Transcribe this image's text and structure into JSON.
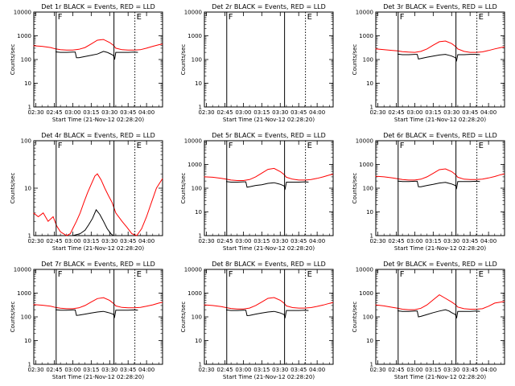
{
  "colors": {
    "events": "#000000",
    "lld": "#ff0000",
    "background": "#ffffff"
  },
  "shared": {
    "xlabel": "Start Time (21-Nov-12 02:28:20)",
    "ylabel": "Counts/sec",
    "x_tick_labels": [
      "02:30",
      "02:45",
      "03:00",
      "03:15",
      "03:30",
      "03:45",
      "04:00"
    ],
    "x_tick_minutes": [
      30,
      45,
      60,
      75,
      90,
      105,
      120
    ],
    "xlim_minutes": [
      28.33,
      133
    ],
    "ylog": true,
    "markers": [
      {
        "label": "F",
        "time_min": 46.5,
        "style": "solid"
      },
      {
        "label": "E",
        "time_min": 110.5,
        "style": "dotted"
      }
    ],
    "extra_solid_lines_min": [
      93.5
    ]
  },
  "chart_data": [
    {
      "type": "line",
      "title": "Det 1r BLACK = Events, RED = LLD",
      "ylim": [
        1,
        10000
      ],
      "y_tick_labels": [
        "1",
        "10",
        "100",
        "1000",
        "10000"
      ],
      "y_tick_values": [
        1,
        10,
        100,
        1000,
        10000
      ],
      "series": [
        {
          "kind": "lld",
          "x": [
            28,
            35,
            42,
            46,
            50,
            55,
            60,
            65,
            70,
            75,
            80,
            85,
            90,
            93,
            95,
            100,
            105,
            110,
            115,
            120,
            125,
            130,
            133
          ],
          "y": [
            380,
            360,
            320,
            280,
            260,
            250,
            250,
            270,
            320,
            450,
            650,
            700,
            520,
            400,
            300,
            260,
            250,
            250,
            260,
            300,
            360,
            420,
            450
          ]
        },
        {
          "kind": "events",
          "x": [
            46,
            50,
            55,
            60,
            62,
            63,
            65,
            70,
            75,
            80,
            85,
            88,
            90,
            93,
            94,
            95,
            100,
            105,
            110,
            113
          ],
          "y": [
            210,
            200,
            200,
            205,
            205,
            120,
            120,
            135,
            150,
            170,
            220,
            200,
            180,
            150,
            100,
            200,
            200,
            200,
            205,
            200
          ]
        }
      ]
    },
    {
      "type": "line",
      "title": "Det 2r BLACK = Events, RED = LLD",
      "ylim": [
        1,
        10000
      ],
      "y_tick_labels": [
        "1",
        "10",
        "100",
        "1000",
        "10000"
      ],
      "y_tick_values": [
        1,
        10,
        100,
        1000,
        10000
      ],
      "series": []
    },
    {
      "type": "line",
      "title": "Det 3r BLACK = Events, RED = LLD",
      "ylim": [
        1,
        10000
      ],
      "y_tick_labels": [
        "1",
        "10",
        "100",
        "1000",
        "10000"
      ],
      "y_tick_values": [
        1,
        10,
        100,
        1000,
        10000
      ],
      "series": [
        {
          "kind": "lld",
          "x": [
            28,
            35,
            42,
            46,
            50,
            55,
            60,
            65,
            70,
            75,
            80,
            85,
            90,
            93,
            95,
            100,
            105,
            110,
            115,
            120,
            125,
            130,
            133
          ],
          "y": [
            280,
            260,
            240,
            230,
            215,
            205,
            200,
            220,
            280,
            400,
            560,
            600,
            470,
            360,
            280,
            220,
            200,
            200,
            210,
            240,
            280,
            320,
            340
          ]
        },
        {
          "kind": "events",
          "x": [
            46,
            50,
            55,
            60,
            62,
            63,
            65,
            70,
            75,
            80,
            85,
            88,
            90,
            93,
            94,
            95,
            100,
            105,
            110,
            113
          ],
          "y": [
            170,
            160,
            160,
            165,
            165,
            105,
            110,
            125,
            140,
            155,
            165,
            150,
            140,
            120,
            90,
            160,
            160,
            165,
            165,
            160
          ]
        }
      ]
    },
    {
      "type": "line",
      "title": "Det 4r BLACK = Events, RED = LLD",
      "ylim": [
        1,
        100
      ],
      "y_tick_labels": [
        "1",
        "10",
        "100"
      ],
      "y_tick_values": [
        1,
        10,
        100
      ],
      "series": [
        {
          "kind": "lld",
          "x": [
            28,
            32,
            36,
            40,
            44,
            47,
            50,
            55,
            58,
            60,
            63,
            66,
            69,
            72,
            75,
            78,
            80,
            83,
            86,
            89,
            92,
            95,
            100,
            104,
            108,
            112,
            116,
            120,
            124,
            128,
            133
          ],
          "y": [
            3,
            2.5,
            3,
            2,
            2.5,
            1.6,
            1.2,
            1.0,
            1.1,
            1.4,
            2,
            3,
            5,
            8,
            12,
            18,
            20,
            15,
            10,
            7,
            5,
            3,
            2,
            1.5,
            1.1,
            1.0,
            1.4,
            2.5,
            5,
            10,
            16
          ]
        },
        {
          "kind": "events",
          "x": [
            60,
            66,
            70,
            73,
            76,
            79,
            82,
            85,
            88,
            91,
            93
          ],
          "y": [
            1.0,
            1.1,
            1.3,
            1.7,
            2.3,
            3.5,
            2.8,
            2.0,
            1.4,
            1.1,
            1.0
          ]
        }
      ]
    },
    {
      "type": "line",
      "title": "Det 5r BLACK = Events, RED = LLD",
      "ylim": [
        1,
        10000
      ],
      "y_tick_labels": [
        "1",
        "10",
        "100",
        "1000",
        "10000"
      ],
      "y_tick_values": [
        1,
        10,
        100,
        1000,
        10000
      ],
      "series": [
        {
          "kind": "lld",
          "x": [
            28,
            35,
            42,
            46,
            50,
            55,
            60,
            65,
            70,
            75,
            80,
            85,
            90,
            93,
            95,
            100,
            105,
            110,
            115,
            120,
            125,
            130,
            133
          ],
          "y": [
            300,
            290,
            260,
            240,
            220,
            210,
            210,
            230,
            300,
            430,
            620,
            680,
            500,
            380,
            290,
            240,
            220,
            220,
            230,
            260,
            300,
            360,
            390
          ]
        },
        {
          "kind": "events",
          "x": [
            46,
            50,
            55,
            60,
            62,
            63,
            65,
            70,
            75,
            80,
            85,
            88,
            90,
            93,
            94,
            95,
            100,
            105,
            110,
            113
          ],
          "y": [
            190,
            180,
            180,
            185,
            185,
            110,
            115,
            130,
            140,
            160,
            170,
            155,
            145,
            125,
            95,
            180,
            180,
            180,
            185,
            180
          ]
        }
      ]
    },
    {
      "type": "line",
      "title": "Det 6r BLACK = Events, RED = LLD",
      "ylim": [
        1,
        10000
      ],
      "y_tick_labels": [
        "1",
        "10",
        "100",
        "1000",
        "10000"
      ],
      "y_tick_values": [
        1,
        10,
        100,
        1000,
        10000
      ],
      "series": [
        {
          "kind": "lld",
          "x": [
            28,
            35,
            42,
            46,
            50,
            55,
            60,
            65,
            70,
            75,
            80,
            85,
            90,
            93,
            95,
            100,
            105,
            110,
            115,
            120,
            125,
            130,
            133
          ],
          "y": [
            320,
            300,
            270,
            250,
            230,
            220,
            220,
            240,
            300,
            420,
            600,
            650,
            500,
            380,
            290,
            240,
            230,
            230,
            240,
            270,
            310,
            370,
            400
          ]
        },
        {
          "kind": "events",
          "x": [
            46,
            50,
            55,
            60,
            62,
            63,
            65,
            70,
            75,
            80,
            85,
            88,
            90,
            93,
            94,
            95,
            100,
            105,
            110,
            113
          ],
          "y": [
            200,
            190,
            190,
            195,
            195,
            115,
            115,
            130,
            145,
            165,
            175,
            160,
            150,
            130,
            100,
            190,
            190,
            190,
            195,
            190
          ]
        }
      ]
    },
    {
      "type": "line",
      "title": "Det 7r BLACK = Events, RED = LLD",
      "ylim": [
        1,
        10000
      ],
      "y_tick_labels": [
        "1",
        "10",
        "100",
        "1000",
        "10000"
      ],
      "y_tick_values": [
        1,
        10,
        100,
        1000,
        10000
      ],
      "series": [
        {
          "kind": "lld",
          "x": [
            28,
            35,
            42,
            46,
            50,
            55,
            60,
            65,
            70,
            75,
            80,
            85,
            90,
            93,
            95,
            100,
            105,
            110,
            115,
            120,
            125,
            130,
            133
          ],
          "y": [
            330,
            310,
            280,
            250,
            230,
            220,
            220,
            240,
            300,
            420,
            590,
            640,
            490,
            370,
            290,
            250,
            240,
            240,
            250,
            280,
            320,
            380,
            410
          ]
        },
        {
          "kind": "events",
          "x": [
            46,
            50,
            55,
            60,
            62,
            63,
            65,
            70,
            75,
            80,
            85,
            88,
            90,
            93,
            94,
            95,
            100,
            105,
            110,
            113
          ],
          "y": [
            200,
            190,
            190,
            195,
            195,
            115,
            118,
            130,
            145,
            160,
            170,
            155,
            145,
            128,
            98,
            190,
            190,
            190,
            195,
            190
          ]
        }
      ]
    },
    {
      "type": "line",
      "title": "Det 8r BLACK = Events, RED = LLD",
      "ylim": [
        1,
        10000
      ],
      "y_tick_labels": [
        "1",
        "10",
        "100",
        "1000",
        "10000"
      ],
      "y_tick_values": [
        1,
        10,
        100,
        1000,
        10000
      ],
      "series": [
        {
          "kind": "lld",
          "x": [
            28,
            35,
            42,
            46,
            50,
            55,
            60,
            65,
            70,
            75,
            80,
            85,
            90,
            93,
            95,
            100,
            105,
            110,
            115,
            120,
            125,
            130,
            133
          ],
          "y": [
            320,
            300,
            270,
            245,
            225,
            215,
            215,
            235,
            300,
            420,
            600,
            650,
            500,
            380,
            290,
            245,
            235,
            235,
            245,
            275,
            315,
            370,
            400
          ]
        },
        {
          "kind": "events",
          "x": [
            46,
            50,
            55,
            60,
            62,
            63,
            65,
            70,
            75,
            80,
            85,
            88,
            90,
            93,
            94,
            95,
            100,
            105,
            110,
            113
          ],
          "y": [
            195,
            185,
            185,
            190,
            190,
            112,
            115,
            130,
            145,
            160,
            170,
            155,
            145,
            125,
            96,
            185,
            185,
            185,
            190,
            185
          ]
        }
      ]
    },
    {
      "type": "line",
      "title": "Det 9r BLACK = Events, RED = LLD",
      "ylim": [
        1,
        10000
      ],
      "y_tick_labels": [
        "1",
        "10",
        "100",
        "1000",
        "10000"
      ],
      "y_tick_values": [
        1,
        10,
        100,
        1000,
        10000
      ],
      "series": [
        {
          "kind": "lld",
          "x": [
            28,
            35,
            42,
            46,
            50,
            55,
            60,
            65,
            70,
            75,
            80,
            85,
            90,
            93,
            95,
            100,
            105,
            110,
            115,
            120,
            125,
            130,
            133
          ],
          "y": [
            320,
            290,
            250,
            230,
            210,
            200,
            200,
            230,
            320,
            520,
            850,
            600,
            420,
            330,
            260,
            220,
            210,
            210,
            220,
            280,
            380,
            420,
            450
          ]
        },
        {
          "kind": "events",
          "x": [
            46,
            50,
            55,
            60,
            62,
            63,
            65,
            70,
            75,
            80,
            85,
            88,
            90,
            93,
            94,
            95,
            100,
            105,
            110,
            113
          ],
          "y": [
            180,
            170,
            170,
            175,
            175,
            100,
            105,
            125,
            150,
            175,
            200,
            175,
            150,
            125,
            88,
            170,
            170,
            170,
            175,
            170
          ]
        }
      ]
    }
  ]
}
